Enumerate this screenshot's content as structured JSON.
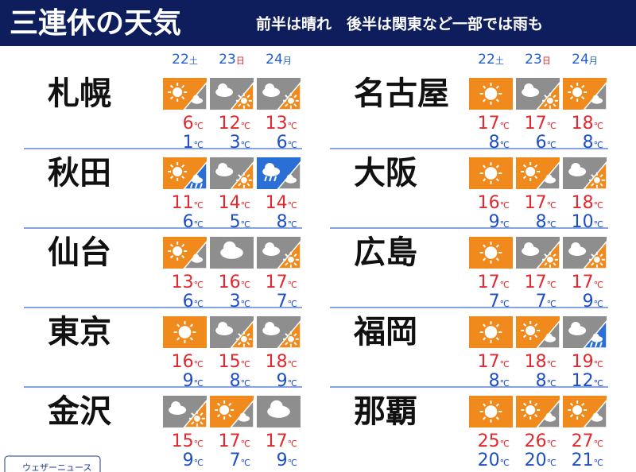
{
  "header": {
    "title": "三連休の天気",
    "subtitle": "前半は晴れ　後半は関東など一部では雨も"
  },
  "days": [
    {
      "date": "22",
      "weekday": "土"
    },
    {
      "date": "23",
      "weekday": "日"
    },
    {
      "date": "24",
      "weekday": "月"
    }
  ],
  "unit": "℃",
  "cities": [
    {
      "name": "札幌",
      "forecast": [
        {
          "weather": "sun-cloud",
          "high": 6,
          "low": 1
        },
        {
          "weather": "cloud-sun",
          "high": 12,
          "low": 3
        },
        {
          "weather": "cloud-sun",
          "high": 13,
          "low": 6
        }
      ]
    },
    {
      "name": "秋田",
      "forecast": [
        {
          "weather": "sun-rain",
          "high": 11,
          "low": 6
        },
        {
          "weather": "cloud-sun",
          "high": 14,
          "low": 5
        },
        {
          "weather": "rain-cloud",
          "high": 14,
          "low": 8
        }
      ]
    },
    {
      "name": "仙台",
      "forecast": [
        {
          "weather": "sun-cloud",
          "high": 13,
          "low": 6
        },
        {
          "weather": "cloud",
          "high": 16,
          "low": 3
        },
        {
          "weather": "cloud-sun",
          "high": 17,
          "low": 7
        }
      ]
    },
    {
      "name": "東京",
      "forecast": [
        {
          "weather": "sun",
          "high": 16,
          "low": 9
        },
        {
          "weather": "cloud-sun",
          "high": 15,
          "low": 8
        },
        {
          "weather": "cloud-sun",
          "high": 18,
          "low": 9
        }
      ]
    },
    {
      "name": "金沢",
      "forecast": [
        {
          "weather": "cloud-sun",
          "high": 15,
          "low": 9
        },
        {
          "weather": "sun-cloud",
          "high": 17,
          "low": 7
        },
        {
          "weather": "cloud",
          "high": 17,
          "low": 9
        }
      ]
    },
    {
      "name": "名古屋",
      "forecast": [
        {
          "weather": "sun",
          "high": 17,
          "low": 8
        },
        {
          "weather": "cloud-sun",
          "high": 17,
          "low": 6
        },
        {
          "weather": "sun-cloud",
          "high": 18,
          "low": 8
        }
      ]
    },
    {
      "name": "大阪",
      "forecast": [
        {
          "weather": "sun",
          "high": 16,
          "low": 9
        },
        {
          "weather": "sun-cloud",
          "high": 17,
          "low": 8
        },
        {
          "weather": "cloud-sun",
          "high": 18,
          "low": 10
        }
      ]
    },
    {
      "name": "広島",
      "forecast": [
        {
          "weather": "sun",
          "high": 17,
          "low": 7
        },
        {
          "weather": "cloud-sun",
          "high": 17,
          "low": 7
        },
        {
          "weather": "cloud-sun",
          "high": 17,
          "low": 9
        }
      ]
    },
    {
      "name": "福岡",
      "forecast": [
        {
          "weather": "sun",
          "high": 17,
          "low": 8
        },
        {
          "weather": "sun-cloud",
          "high": 18,
          "low": 8
        },
        {
          "weather": "cloud-rain",
          "high": 19,
          "low": 12
        }
      ]
    },
    {
      "name": "那覇",
      "forecast": [
        {
          "weather": "sun",
          "high": 25,
          "low": 20
        },
        {
          "weather": "sun-cloud",
          "high": 26,
          "low": 20
        },
        {
          "weather": "sun-cloud",
          "high": 27,
          "low": 21
        }
      ]
    }
  ],
  "logo": "ウェザーニュース"
}
